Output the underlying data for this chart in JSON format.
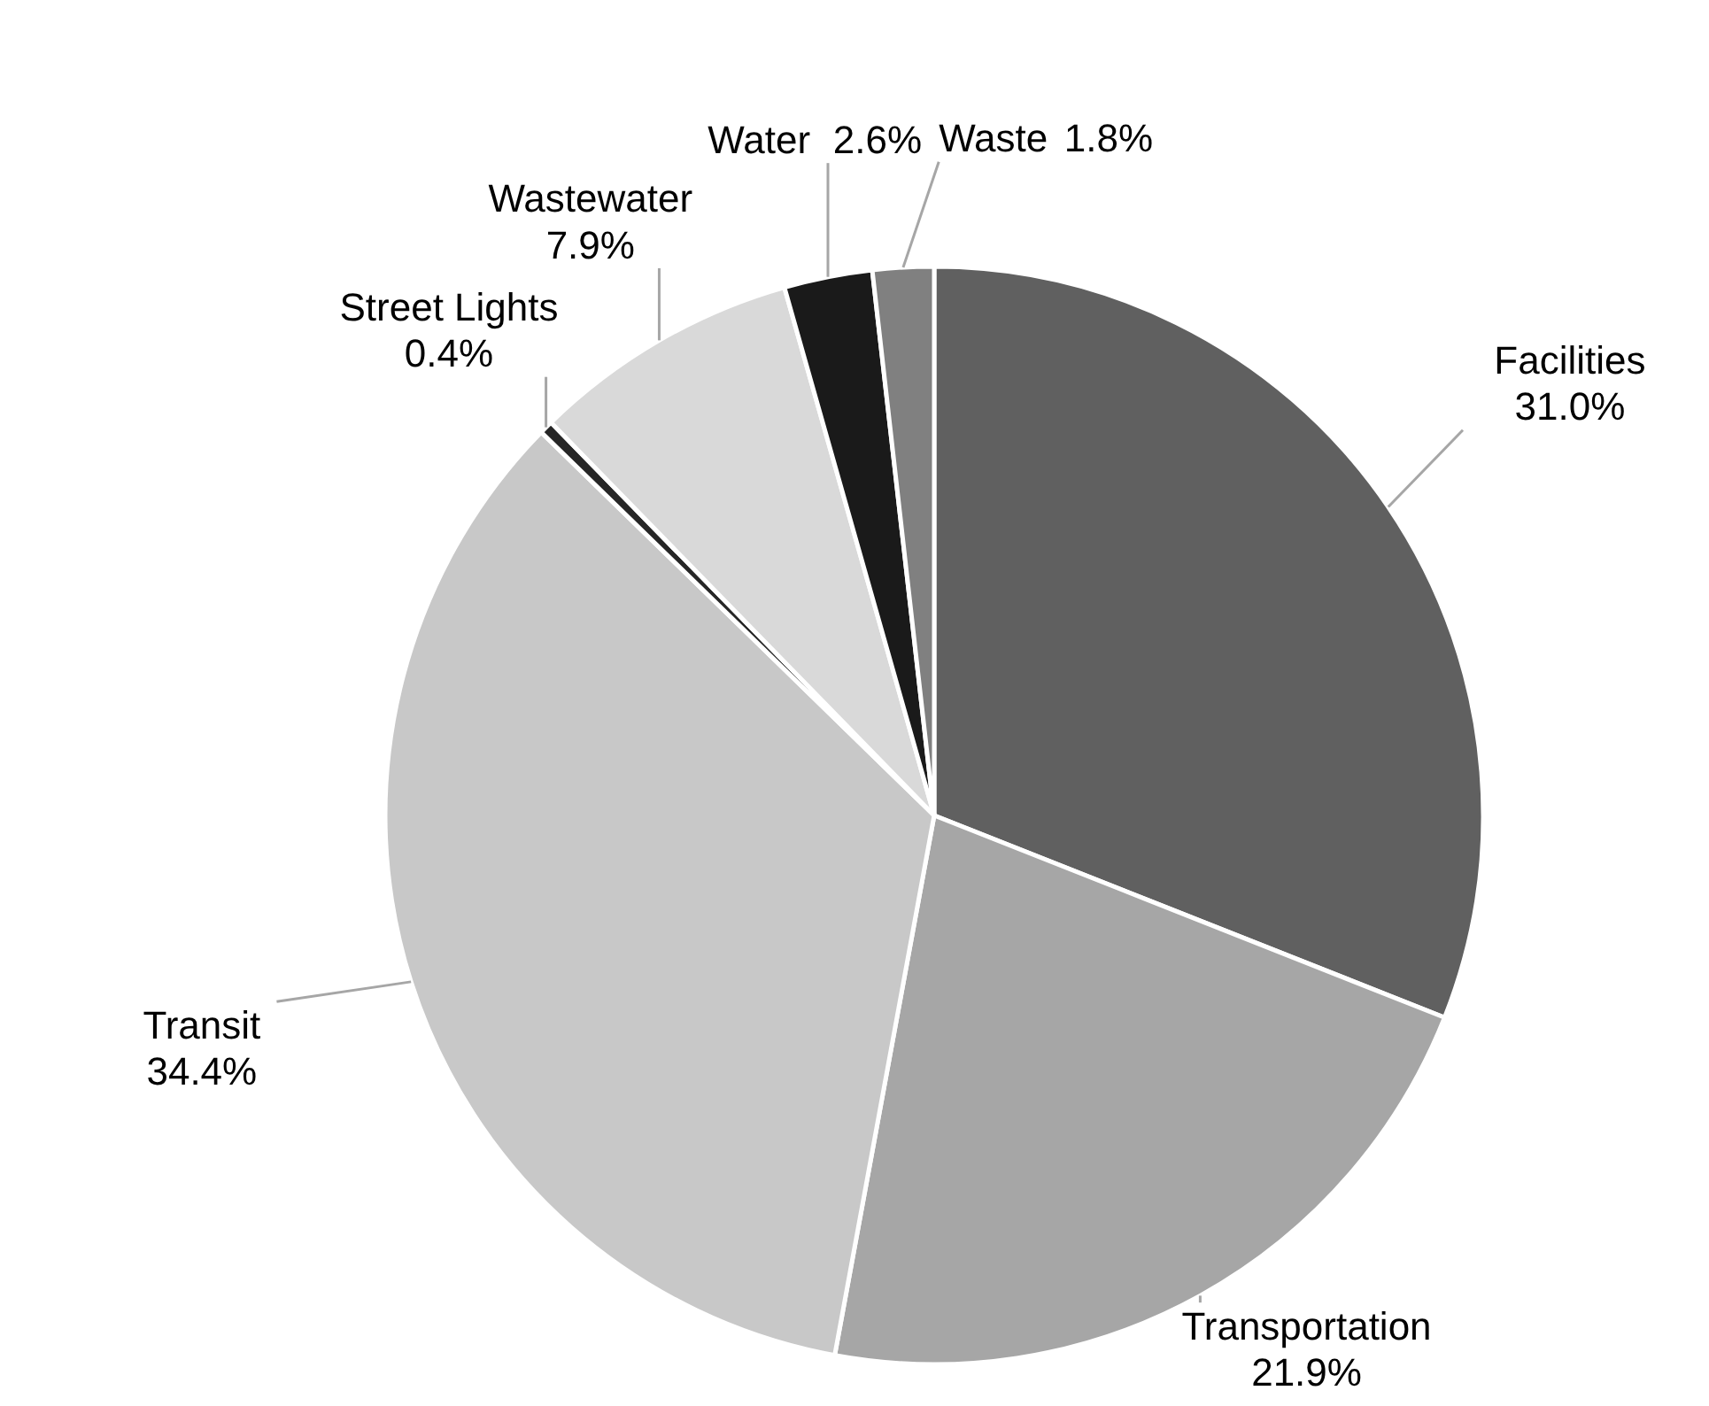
{
  "chart_data": {
    "type": "pie",
    "categories": [
      "Facilities",
      "Transportation",
      "Transit",
      "Street Lights",
      "Wastewater",
      "Water",
      "Waste"
    ],
    "values": [
      31.0,
      21.9,
      34.4,
      0.4,
      7.9,
      2.6,
      1.8
    ],
    "colors": [
      "#606060",
      "#a6a6a6",
      "#c8c8c8",
      "#262626",
      "#d9d9d9",
      "#1a1a1a",
      "#808080"
    ],
    "value_labels": [
      "31.0%",
      "21.9%",
      "34.4%",
      "0.4%",
      "7.9%",
      "2.6%",
      "1.8%"
    ]
  }
}
